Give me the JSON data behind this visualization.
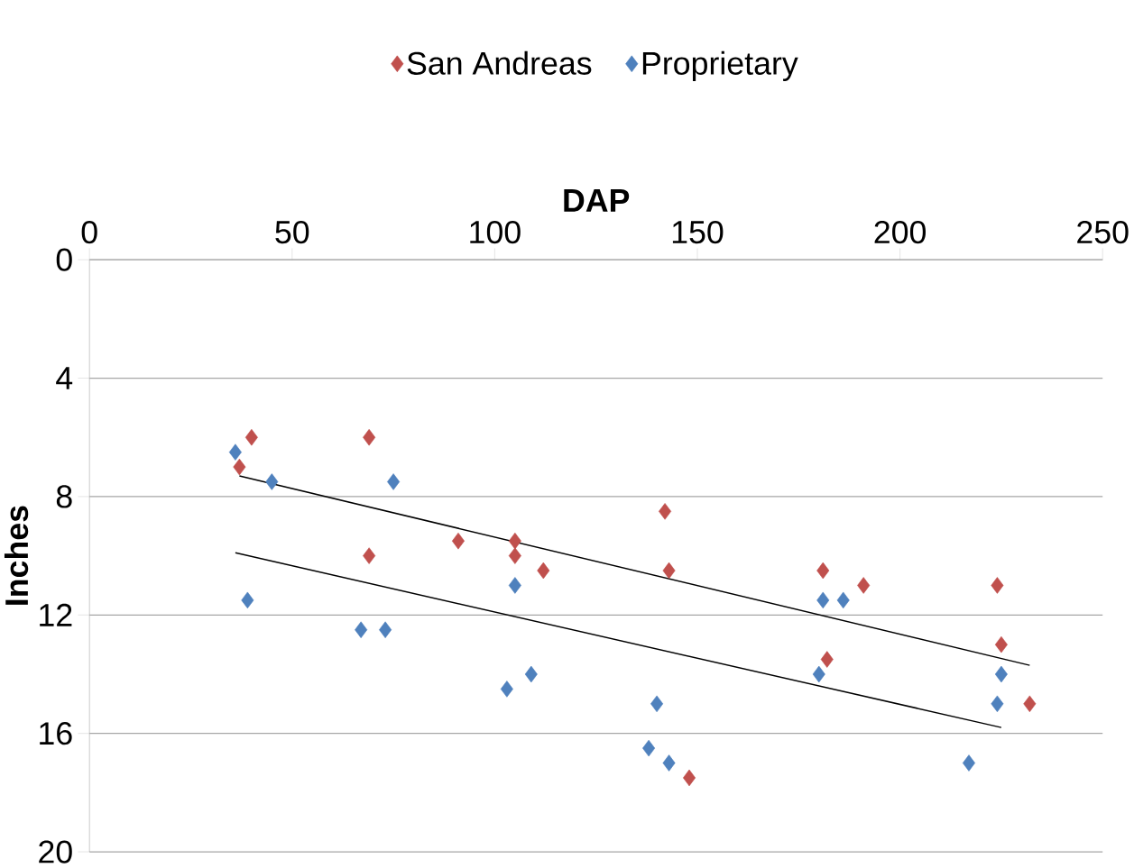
{
  "chart_data": {
    "type": "scatter",
    "xlabel": "DAP",
    "ylabel": "Inches",
    "xlim": [
      0,
      250
    ],
    "xticks": [
      0,
      50,
      100,
      150,
      200,
      250
    ],
    "ylim": [
      20,
      0
    ],
    "yticks": [
      0,
      4,
      8,
      12,
      16,
      20
    ],
    "grid": "y",
    "legend": "top",
    "marker": "diamond",
    "series": [
      {
        "name": "San Andreas",
        "color": "#c0504d",
        "x": [
          37,
          40,
          69,
          69,
          91,
          105,
          105,
          112,
          142,
          143,
          148,
          181,
          182,
          191,
          224,
          225,
          232
        ],
        "values": [
          7,
          6,
          6,
          10,
          9.5,
          9.5,
          10,
          10.5,
          8.5,
          10.5,
          17.5,
          10.5,
          13.5,
          11,
          11,
          13,
          15
        ]
      },
      {
        "name": "Proprietary",
        "color": "#4f81bd",
        "x": [
          36,
          45,
          39,
          75,
          67,
          73,
          105,
          103,
          109,
          140,
          138,
          143,
          181,
          186,
          180,
          217,
          224,
          225
        ],
        "values": [
          6.5,
          7.5,
          11.5,
          7.5,
          12.5,
          12.5,
          11,
          14.5,
          14,
          15,
          16.5,
          17,
          11.5,
          11.5,
          14,
          17,
          15,
          14
        ]
      },
      {
        "type": "line",
        "color": "#000000",
        "marker": "none",
        "x": [
          37,
          232
        ],
        "values": [
          7.3,
          13.7
        ]
      },
      {
        "type": "line",
        "color": "#000000",
        "marker": "none",
        "x": [
          36,
          225
        ],
        "values": [
          9.9,
          15.8
        ]
      }
    ]
  }
}
